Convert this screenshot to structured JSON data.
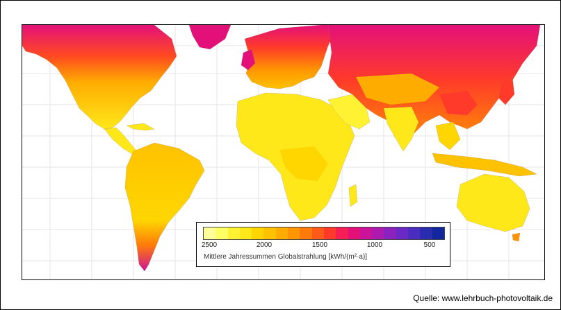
{
  "map": {
    "legend": {
      "colors": [
        "#ffff99",
        "#ffff66",
        "#fff233",
        "#ffe81a",
        "#ffd600",
        "#ffc200",
        "#ffac00",
        "#ff9500",
        "#ff7a0a",
        "#ff5a1a",
        "#ff3a2a",
        "#f51e55",
        "#e4107a",
        "#cc1298",
        "#ad1aae",
        "#8c22be",
        "#6a28c4",
        "#4a2cc0",
        "#2a2cb0",
        "#12269e"
      ],
      "ticks": [
        "2500",
        "2000",
        "1500",
        "1000",
        "500"
      ],
      "title": "Mittlere Jahressummen Globalstrahlung [kWh/(m²·a)]"
    },
    "source": "Quelle: www.lehrbuch-photovoltaik.de"
  }
}
